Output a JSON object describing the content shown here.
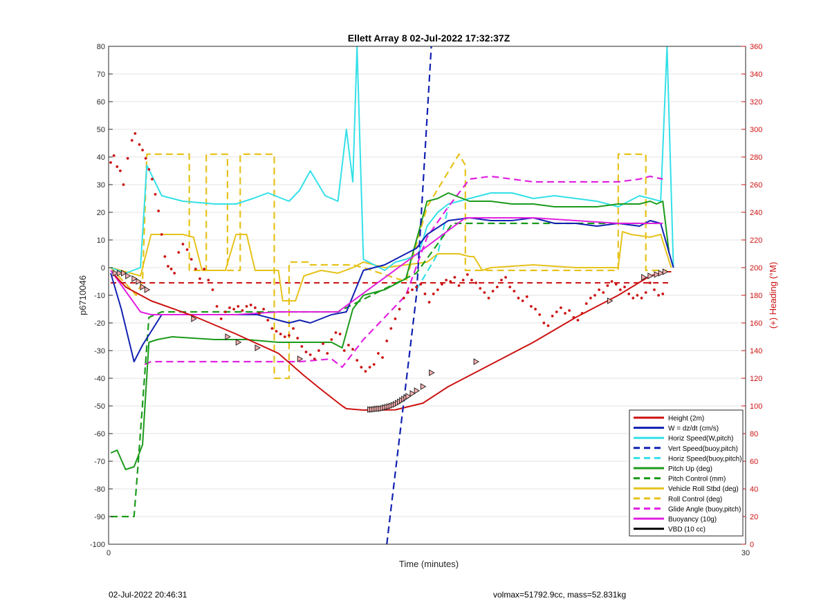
{
  "chart_data": {
    "type": "line",
    "title": "Ellett Array 8 02-Jul-2022 17:32:37Z",
    "xlabel": "Time (minutes)",
    "ylabel_left": "p6710046",
    "ylabel_right": "(+) Heading (°M)",
    "xlim": [
      0,
      30
    ],
    "ylim_left": [
      -100,
      80
    ],
    "ylim_right": [
      0,
      360
    ],
    "x_ticks": [
      0,
      30
    ],
    "y_ticks_left": [
      -100,
      -90,
      -80,
      -70,
      -60,
      -50,
      -40,
      -30,
      -20,
      -10,
      0,
      10,
      20,
      30,
      40,
      50,
      60,
      70,
      80
    ],
    "y_ticks_right": [
      0,
      20,
      40,
      60,
      80,
      100,
      120,
      140,
      160,
      180,
      200,
      220,
      240,
      260,
      280,
      300,
      320,
      340,
      360
    ],
    "grid": "horizontal",
    "legend_position": "bottom-right",
    "colors": {
      "red": "#cc1111",
      "blue": "#1020b0",
      "cyan": "#33e0e8",
      "green": "#1a9a1a",
      "yellow": "#e6c21a",
      "magenta": "#e020e0",
      "black": "#000000",
      "axis_right": "#cc1111"
    },
    "series": [
      {
        "name": "Height (2m)",
        "color": "#cc1111",
        "dash": "solid",
        "x": [
          0.2,
          0.8,
          2,
          4,
          6,
          8,
          9.2,
          10,
          11,
          11.2,
          12,
          12.6,
          13.5,
          14.8,
          16,
          18,
          20,
          22,
          24,
          25.5,
          26.2,
          26.5
        ],
        "y": [
          -2,
          -7,
          -12,
          -17.5,
          -24,
          -31,
          -39,
          -44,
          -50,
          -51,
          -51.5,
          -51.5,
          -51.4,
          -49,
          -43,
          -35,
          -27,
          -18,
          -10,
          -3,
          -1.5,
          -1.5
        ]
      },
      {
        "name": "W = dz/dt (cm/s)",
        "color": "#1020b0",
        "dash": "solid",
        "x": [
          0.1,
          0.6,
          1.2,
          1.6,
          2.5,
          4,
          5.5,
          7,
          8,
          8.5,
          9,
          9.5,
          10.5,
          11.2,
          12,
          13,
          14.5,
          15,
          16,
          17,
          18,
          19,
          20,
          21,
          22,
          23,
          24,
          25,
          25.5,
          26,
          26.6
        ],
        "y": [
          -2,
          -15,
          -34,
          -28,
          -17,
          -17,
          -17,
          -17,
          -19,
          -20,
          -19,
          -20,
          -17,
          -16,
          -1,
          1,
          7,
          12,
          17,
          18,
          17,
          17,
          18,
          16,
          16,
          15,
          16,
          15,
          17,
          16,
          0
        ]
      },
      {
        "name": "Horiz Speed(W,pitch)",
        "color": "#33e0e8",
        "dash": "solid",
        "x": [
          0.1,
          0.8,
          1.5,
          1.8,
          2.5,
          3.5,
          5,
          6,
          6.8,
          7.5,
          8.5,
          9,
          9.5,
          10.2,
          10.8,
          11.2,
          11.5,
          11.7,
          12,
          12.5,
          13,
          13.5,
          14,
          14.6,
          15,
          15.5,
          16,
          17,
          18,
          19,
          20,
          21,
          22,
          23,
          24,
          25,
          25.5,
          26,
          26.3,
          26.6
        ],
        "y": [
          0,
          -2,
          0,
          37,
          26,
          24,
          23,
          23,
          25,
          27,
          24,
          28,
          35,
          26,
          24,
          50,
          31,
          80,
          3,
          1,
          -1,
          2,
          3,
          5,
          15,
          20,
          23,
          25,
          27,
          27,
          25,
          26,
          25,
          24,
          22,
          26,
          25,
          24,
          80,
          0
        ]
      },
      {
        "name": "Vert Speed(buoy,pitch)",
        "color": "#1020b0",
        "dash": "dashed",
        "x": [
          13.1,
          14.5,
          15.2
        ],
        "y": [
          -100,
          -10,
          80
        ]
      },
      {
        "name": "Horiz Speed(buoy,pitch)",
        "color": "#33e0e8",
        "dash": "dashed",
        "x": [
          14.5,
          15.5,
          16
        ],
        "y": [
          -8,
          5,
          22
        ]
      },
      {
        "name": "Pitch Up (deg)",
        "color": "#1a9a1a",
        "dash": "solid",
        "x": [
          0.1,
          0.4,
          0.8,
          1.2,
          1.3,
          1.6,
          1.9,
          2.3,
          3,
          5,
          6.5,
          8,
          9,
          10,
          10.5,
          11,
          11.5,
          12,
          13,
          14,
          15,
          15.5,
          16,
          17,
          18,
          19,
          20,
          21,
          22,
          23,
          24,
          25,
          25.5,
          25.8,
          26.1,
          26.4
        ],
        "y": [
          -67,
          -66,
          -73,
          -72,
          -70,
          -64,
          -27,
          -26,
          -25,
          -26,
          -26,
          -27,
          -27,
          -27,
          -27,
          -29,
          -15,
          -10,
          -8,
          -4,
          24,
          25,
          27,
          24,
          24,
          23,
          23,
          22,
          22,
          22,
          23,
          23,
          24,
          23,
          24,
          5
        ]
      },
      {
        "name": "Pitch Control (mm)",
        "color": "#1a9a1a",
        "dash": "dashed",
        "x": [
          0.1,
          1.2,
          1.4,
          1.9,
          2.5,
          10.8,
          14.5,
          16.2,
          17,
          26.1
        ],
        "y": [
          -90,
          -90,
          -70,
          -18,
          -16,
          -16,
          -2,
          16,
          16,
          16
        ]
      },
      {
        "name": "Vehicle Roll Stbd (deg)",
        "color": "#e6c21a",
        "dash": "solid",
        "x": [
          0.1,
          1.5,
          2,
          3.5,
          4,
          4.4,
          5.5,
          6,
          6.5,
          6.9,
          8,
          8.2,
          8.8,
          9.2,
          10,
          10.8,
          11.5,
          12,
          13,
          14,
          15,
          15.5,
          16,
          16.5,
          17,
          17.2,
          17.6,
          18,
          20,
          22,
          24,
          24.2,
          24.6,
          25.5,
          26,
          26.5
        ],
        "y": [
          0,
          -3,
          12,
          12,
          11,
          -1,
          -1,
          12,
          12,
          -1,
          -1,
          -12,
          -12,
          -3,
          -1,
          -2,
          0,
          2,
          0,
          1,
          2,
          5,
          5,
          5,
          4,
          4,
          -1,
          0,
          1,
          0,
          0,
          13,
          12,
          11,
          12,
          0
        ]
      },
      {
        "name": "Roll Control (deg)",
        "color": "#e6c21a",
        "dash": "dashed",
        "x": [
          0.1,
          1.3,
          1.6,
          1.8,
          3.8,
          3.8,
          4.6,
          4.6,
          5.6,
          5.6,
          6.2,
          6.2,
          7.8,
          7.8,
          8.5,
          8.5,
          9.4,
          9.4,
          11.5,
          12,
          14,
          15,
          16.5,
          16.8,
          16.8,
          24,
          24,
          25.3,
          25.3,
          26.3
        ],
        "y": [
          0,
          -10,
          -5,
          41,
          41,
          -1,
          -1,
          41,
          41,
          -1,
          -1,
          41,
          41,
          -40,
          -40,
          2,
          2,
          1,
          1,
          0,
          -5,
          22,
          41,
          37,
          -1,
          -1,
          41,
          41,
          -1,
          -1
        ]
      },
      {
        "name": "Glide Angle (buoy,pitch)",
        "color": "#e020e0",
        "dash": "dashed",
        "x": [
          1.7,
          2,
          4,
          6,
          8,
          9,
          10.5,
          11,
          12,
          13,
          14,
          15,
          16,
          17,
          18,
          20,
          22,
          24,
          25,
          25.5,
          26.1
        ],
        "y": [
          -35,
          -34,
          -34,
          -34,
          -34,
          -34,
          -33,
          -36,
          -26,
          -18,
          -10,
          11,
          22,
          32,
          33,
          31,
          31,
          31,
          32,
          33,
          32
        ]
      },
      {
        "name": "Buoyancy (10g)",
        "color": "#e020e0",
        "dash": "solid",
        "x": [
          0.1,
          1.5,
          2,
          4,
          6,
          8,
          10.8,
          14,
          16.8,
          20,
          24,
          26.1
        ],
        "y": [
          -1,
          -16,
          -17,
          -17,
          -17,
          -16,
          -16,
          2,
          18,
          18,
          16,
          16
        ]
      },
      {
        "name": "VBD (10 cc)",
        "color": "#000000",
        "dash": "solid",
        "x": [
          0.1,
          0.6,
          1,
          1.5,
          2.2,
          4,
          6,
          8,
          9,
          10,
          10.8,
          14,
          16.8,
          20,
          22,
          24,
          26,
          26.5
        ],
        "y": [
          16,
          2,
          -6,
          -13,
          -16.5,
          -16.5,
          -16.5,
          -16.5,
          -16.5,
          -16.5,
          -16.5,
          1,
          16.5,
          16.5,
          16.5,
          16.5,
          16.5,
          7
        ]
      }
    ],
    "reference_line": {
      "axis": "right",
      "value": 189,
      "color": "#cc1111",
      "dash": "dashed",
      "x": [
        0.1,
        26.5
      ]
    },
    "heading_dots": {
      "axis": "right",
      "color": "#cc1111",
      "x": [
        0.1,
        0.25,
        0.4,
        0.55,
        0.7,
        0.9,
        1.1,
        1.25,
        1.45,
        1.6,
        1.75,
        1.9,
        2.05,
        2.2,
        2.35,
        2.5,
        2.65,
        2.8,
        2.95,
        3.1,
        3.3,
        3.5,
        3.7,
        3.9,
        4.1,
        4.3,
        4.5,
        4.7,
        4.9,
        5.1,
        5.3,
        5.5,
        5.7,
        5.9,
        6.1,
        6.3,
        6.5,
        6.7,
        6.9,
        7.1,
        7.3,
        7.5,
        7.7,
        7.9,
        8.1,
        8.3,
        8.5,
        8.7,
        8.9,
        9.1,
        9.3,
        9.5,
        9.7,
        9.9,
        10.1,
        10.3,
        10.5,
        10.7,
        10.9,
        11.1,
        11.3,
        11.5,
        11.7,
        11.9,
        12.1,
        12.3,
        12.5,
        12.7,
        12.9,
        13.1,
        13.3,
        13.5,
        13.7,
        13.9,
        14.1,
        14.3,
        14.5,
        14.7,
        14.9,
        15.1,
        15.3,
        15.5,
        15.7,
        15.9,
        16.1,
        16.3,
        16.5,
        16.7,
        16.9,
        17.1,
        17.3,
        17.5,
        17.7,
        17.9,
        18.1,
        18.3,
        18.5,
        18.7,
        18.9,
        19.1,
        19.3,
        19.5,
        19.7,
        19.9,
        20.1,
        20.3,
        20.5,
        20.7,
        20.9,
        21.1,
        21.3,
        21.5,
        21.7,
        21.9,
        22.1,
        22.3,
        22.5,
        22.7,
        22.9,
        23.1,
        23.3,
        23.5,
        23.7,
        23.9,
        24.1,
        24.3,
        24.5,
        24.7,
        24.9,
        25.1,
        25.3,
        25.5,
        25.7,
        25.9,
        26.1
      ],
      "y": [
        276,
        281,
        273,
        270,
        260,
        279,
        292,
        297,
        289,
        285,
        279,
        271,
        264,
        253,
        241,
        224,
        208,
        201,
        199,
        196,
        211,
        217,
        213,
        206,
        199,
        192,
        199,
        191,
        184,
        172,
        163,
        168,
        171,
        170,
        172,
        169,
        172,
        173,
        171,
        167,
        170,
        162,
        156,
        154,
        152,
        150,
        151,
        156,
        149,
        143,
        139,
        137,
        134,
        140,
        145,
        138,
        148,
        153,
        152,
        140,
        144,
        141,
        133,
        128,
        125,
        128,
        130,
        138,
        135,
        147,
        156,
        163,
        170,
        178,
        182,
        184,
        186,
        188,
        181,
        175,
        181,
        184,
        188,
        191,
        190,
        193,
        187,
        191,
        195,
        191,
        189,
        185,
        182,
        178,
        183,
        186,
        191,
        193,
        186,
        183,
        178,
        176,
        179,
        172,
        170,
        166,
        160,
        158,
        165,
        168,
        171,
        167,
        169,
        164,
        162,
        167,
        174,
        178,
        180,
        184,
        182,
        187,
        190,
        188,
        184,
        186,
        181,
        178,
        180,
        178,
        182,
        189,
        184,
        180,
        181
      ]
    },
    "height_markers": {
      "color": "#cc1111",
      "x": [
        0.3,
        0.5,
        0.7,
        0.9,
        1.2,
        1.4,
        1.6,
        1.8,
        4,
        5.6,
        6.1,
        7,
        9,
        12.3,
        12.4,
        12.5,
        12.6,
        12.7,
        12.8,
        12.9,
        13,
        13.1,
        13.2,
        13.3,
        13.4,
        13.5,
        13.6,
        13.7,
        13.8,
        13.9,
        14,
        14.1,
        14.3,
        14.5,
        14.8,
        15.2,
        17.3,
        23.6,
        25.2,
        25.5,
        25.8,
        26.0,
        26.2
      ],
      "y": [
        -2,
        -2,
        -2,
        -3,
        -4,
        -5,
        -7,
        -8,
        -18.5,
        -25,
        -27,
        -29,
        -33,
        -51.3,
        -51.3,
        -51.2,
        -51.1,
        -51,
        -51,
        -50.8,
        -50.6,
        -50.4,
        -50.2,
        -50,
        -49.7,
        -49.4,
        -49,
        -48.5,
        -48,
        -47.5,
        -47,
        -46.5,
        -45.5,
        -44.5,
        -43,
        -38,
        -34,
        -12,
        -3.5,
        -3,
        -2.5,
        -2,
        -1.5
      ]
    },
    "footer_left": "02-Jul-2022 20:46:31",
    "footer_right": "volmax=51792.9cc, mass=52.831kg"
  }
}
